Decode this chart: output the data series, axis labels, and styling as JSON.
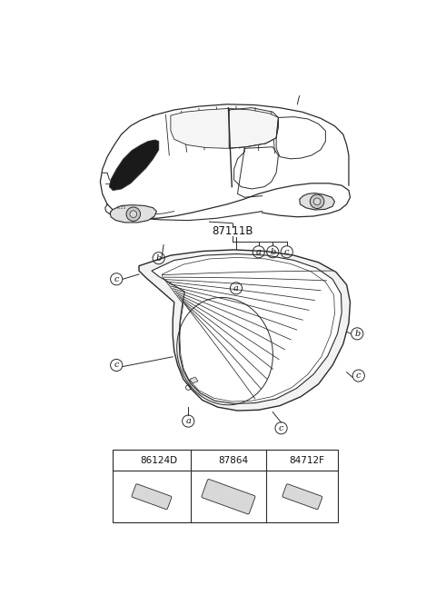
{
  "background_color": "#ffffff",
  "part_label_87111B": "87111B",
  "part_a_code": "86124D",
  "part_b_code": "87864",
  "part_c_code": "84712F",
  "label_a": "a",
  "label_b": "b",
  "label_c": "c",
  "line_color": "#2a2a2a",
  "text_color": "#111111",
  "fig_width": 4.8,
  "fig_height": 6.55,
  "dpi": 100
}
